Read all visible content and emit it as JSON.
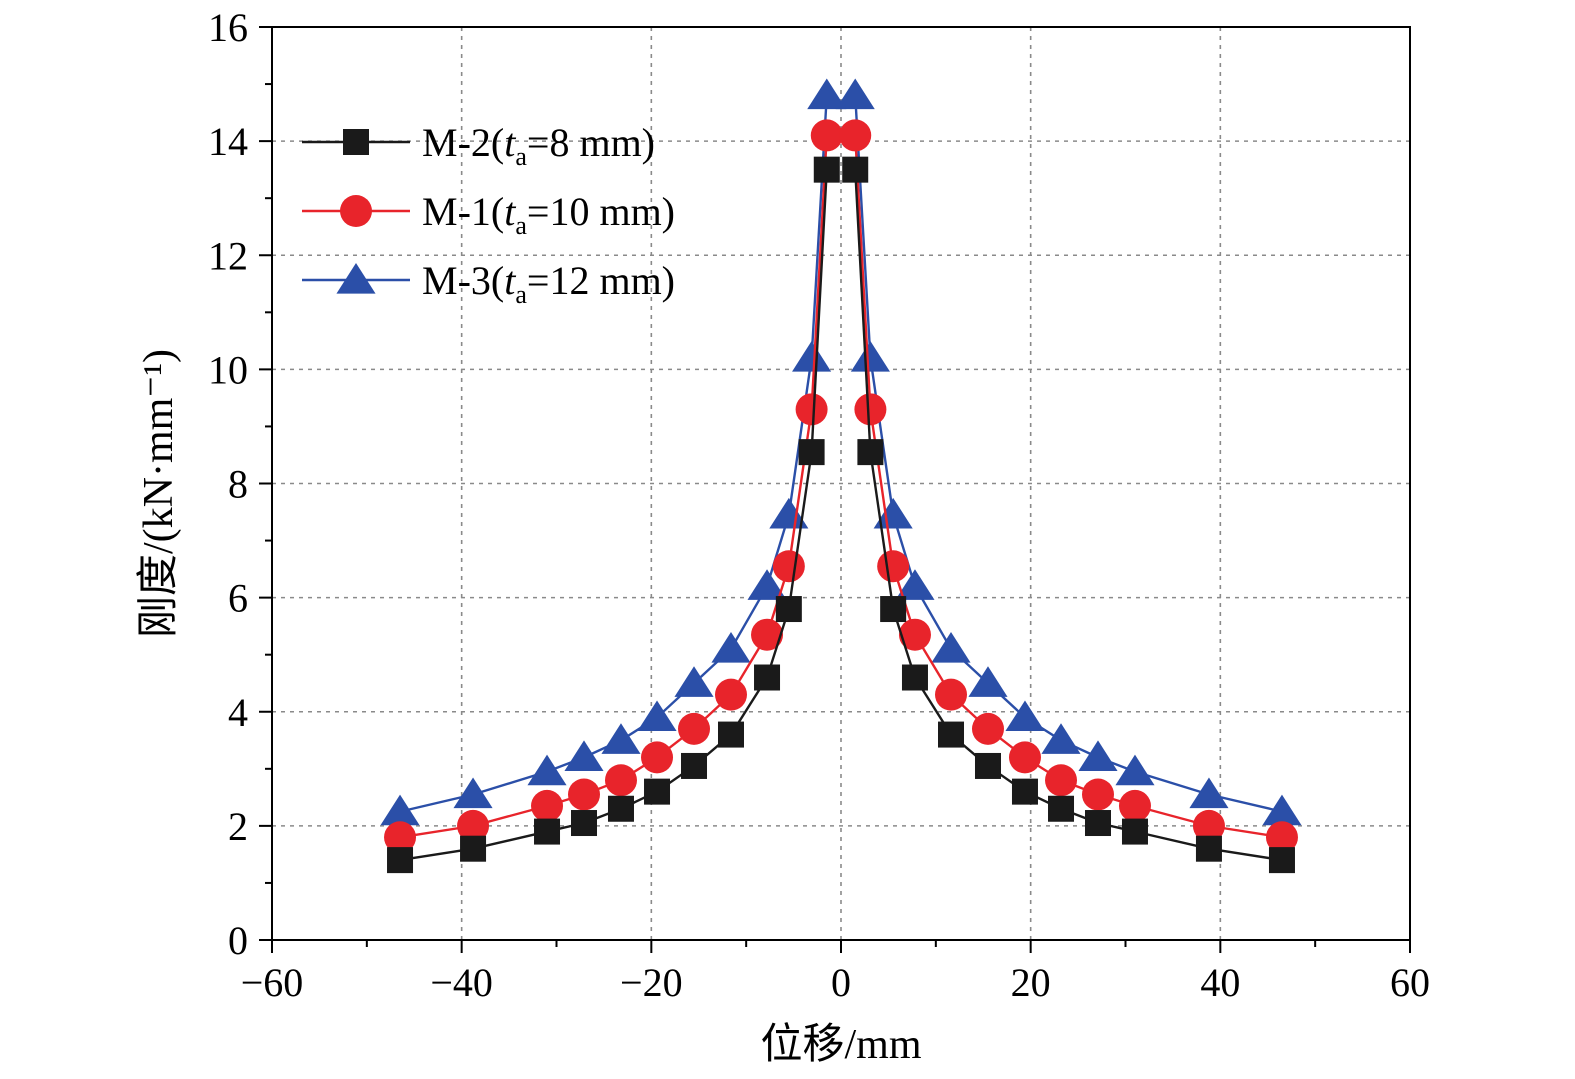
{
  "chart_data": {
    "type": "line",
    "xlabel": "位移/mm",
    "ylabel": "刚度/(kN·mm⁻¹)",
    "xlim": [
      -60,
      60
    ],
    "ylim": [
      0,
      16
    ],
    "x_ticks": [
      -60,
      -40,
      -20,
      0,
      20,
      40,
      60
    ],
    "x_tick_labels": [
      "−60",
      "−40",
      "−20",
      "0",
      "20",
      "40",
      "60"
    ],
    "y_ticks": [
      0,
      2,
      4,
      6,
      8,
      10,
      12,
      14,
      16
    ],
    "y_tick_labels": [
      "0",
      "2",
      "4",
      "6",
      "8",
      "10",
      "12",
      "14",
      "16"
    ],
    "grid": true,
    "legend_position": "top-left",
    "series": [
      {
        "name": "M-2(ta=8 mm)",
        "legend": {
          "prefix": "M-2(",
          "italic": "t",
          "subscript": "a",
          "suffix": "=8 mm)"
        },
        "color": "#1a1a1a",
        "marker": "square",
        "x": [
          -46.5,
          -38.8,
          -31.0,
          -27.1,
          -23.2,
          -19.4,
          -15.5,
          -11.6,
          -7.8,
          -5.5,
          -3.1,
          -1.5,
          1.5,
          3.1,
          5.5,
          7.8,
          11.6,
          15.5,
          19.4,
          23.2,
          27.1,
          31.0,
          38.8,
          46.5
        ],
        "y": [
          1.4,
          1.6,
          1.9,
          2.05,
          2.3,
          2.6,
          3.05,
          3.6,
          4.6,
          5.8,
          8.55,
          13.5,
          13.5,
          8.55,
          5.8,
          4.6,
          3.6,
          3.05,
          2.6,
          2.3,
          2.05,
          1.9,
          1.6,
          1.4
        ]
      },
      {
        "name": "M-1(ta=10 mm)",
        "legend": {
          "prefix": "M-1(",
          "italic": "t",
          "subscript": "a",
          "suffix": "=10 mm)"
        },
        "color": "#e8242b",
        "marker": "circle",
        "x": [
          -46.5,
          -38.8,
          -31.0,
          -27.1,
          -23.2,
          -19.4,
          -15.5,
          -11.6,
          -7.8,
          -5.5,
          -3.1,
          -1.5,
          1.5,
          3.1,
          5.5,
          7.8,
          11.6,
          15.5,
          19.4,
          23.2,
          27.1,
          31.0,
          38.8,
          46.5
        ],
        "y": [
          1.8,
          2.0,
          2.35,
          2.55,
          2.8,
          3.2,
          3.7,
          4.3,
          5.35,
          6.55,
          9.3,
          14.1,
          14.1,
          9.3,
          6.55,
          5.35,
          4.3,
          3.7,
          3.2,
          2.8,
          2.55,
          2.35,
          2.0,
          1.8
        ]
      },
      {
        "name": "M-3(ta=12 mm)",
        "legend": {
          "prefix": "M-3(",
          "italic": "t",
          "subscript": "a",
          "suffix": "=12 mm)"
        },
        "color": "#2b4fa8",
        "marker": "triangle",
        "x": [
          -46.5,
          -38.8,
          -31.0,
          -27.1,
          -23.2,
          -19.4,
          -15.5,
          -11.6,
          -7.8,
          -5.5,
          -3.1,
          -1.5,
          1.5,
          3.1,
          5.5,
          7.8,
          11.6,
          15.5,
          19.4,
          23.2,
          27.1,
          31.0,
          38.8,
          46.5
        ],
        "y": [
          2.25,
          2.55,
          2.95,
          3.2,
          3.5,
          3.9,
          4.5,
          5.1,
          6.2,
          7.45,
          10.2,
          14.8,
          14.8,
          10.2,
          7.45,
          6.2,
          5.1,
          4.5,
          3.9,
          3.5,
          3.2,
          2.95,
          2.55,
          2.25
        ]
      }
    ]
  }
}
